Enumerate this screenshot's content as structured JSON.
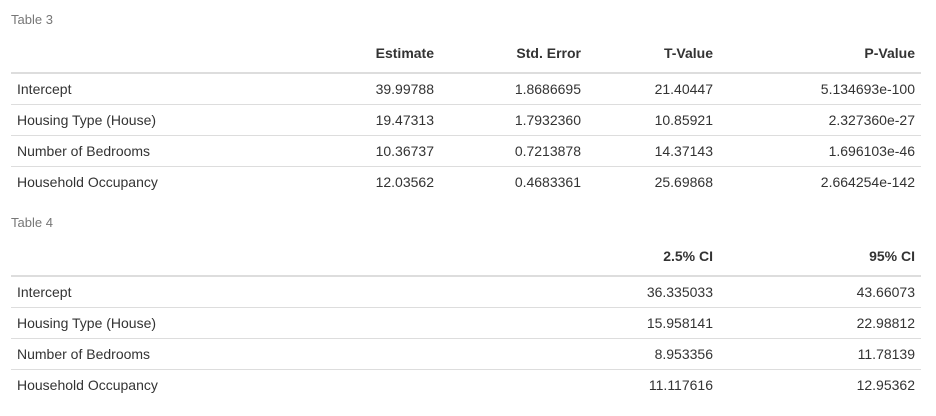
{
  "table3": {
    "caption": "Table 3",
    "headers": [
      "",
      "Estimate",
      "Std. Error",
      "T-Value",
      "P-Value"
    ],
    "rows": [
      [
        "Intercept",
        "39.99788",
        "1.8686695",
        "21.40447",
        "5.134693e-100"
      ],
      [
        "Housing Type (House)",
        "19.47313",
        "1.7932360",
        "10.85921",
        "2.327360e-27"
      ],
      [
        "Number of Bedrooms",
        "10.36737",
        "0.7213878",
        "14.37143",
        "1.696103e-46"
      ],
      [
        "Household Occupancy",
        "12.03562",
        "0.4683361",
        "25.69868",
        "2.664254e-142"
      ]
    ]
  },
  "table4": {
    "caption": "Table 4",
    "headers": [
      "",
      "2.5% CI",
      "95% CI"
    ],
    "rows": [
      [
        "Intercept",
        "36.335033",
        "43.66073"
      ],
      [
        "Housing Type (House)",
        "15.958141",
        "22.98812"
      ],
      [
        "Number of Bedrooms",
        "8.953356",
        "11.78139"
      ],
      [
        "Household Occupancy",
        "11.117616",
        "12.95362"
      ]
    ]
  }
}
